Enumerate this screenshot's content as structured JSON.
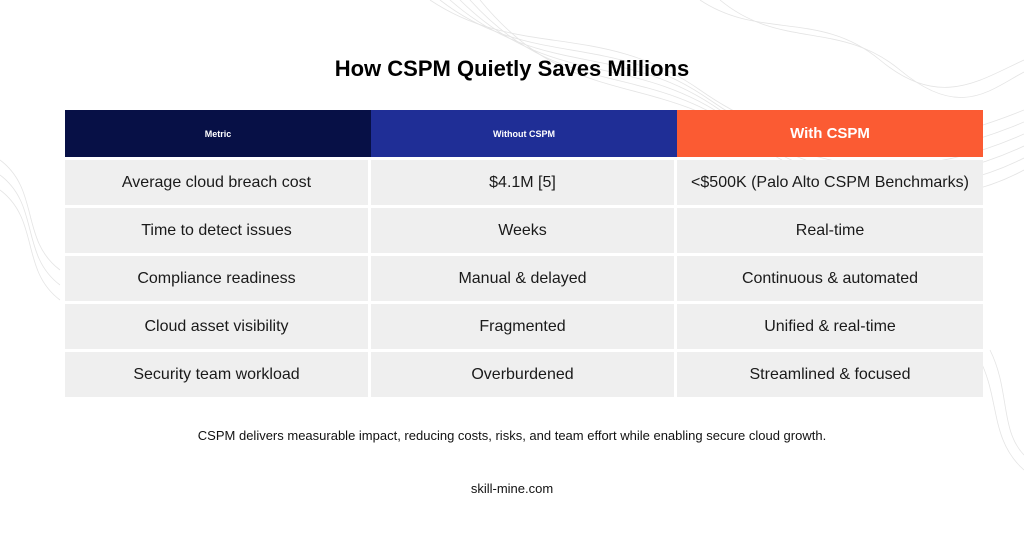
{
  "title": "How CSPM Quietly Saves Millions",
  "table": {
    "headers": [
      "Metric",
      "Without CSPM",
      "With CSPM"
    ],
    "rows": [
      [
        "Average cloud breach cost",
        "$4.1M [5]",
        "<$500K (Palo Alto CSPM Benchmarks)"
      ],
      [
        "Time to detect issues",
        "Weeks",
        "Real-time"
      ],
      [
        "Compliance readiness",
        "Manual & delayed",
        "Continuous & automated"
      ],
      [
        "Cloud asset visibility",
        "Fragmented",
        "Unified & real-time"
      ],
      [
        "Security team workload",
        "Overburdened",
        "Streamlined & focused"
      ]
    ]
  },
  "colors": {
    "header_metric": "#071046",
    "header_without": "#1f2e96",
    "header_with": "#fb5b33",
    "row_bg": "#efefef"
  },
  "footer": {
    "summary": "CSPM delivers measurable impact, reducing costs, risks, and team effort while enabling secure cloud growth.",
    "site": "skill-mine.com"
  }
}
